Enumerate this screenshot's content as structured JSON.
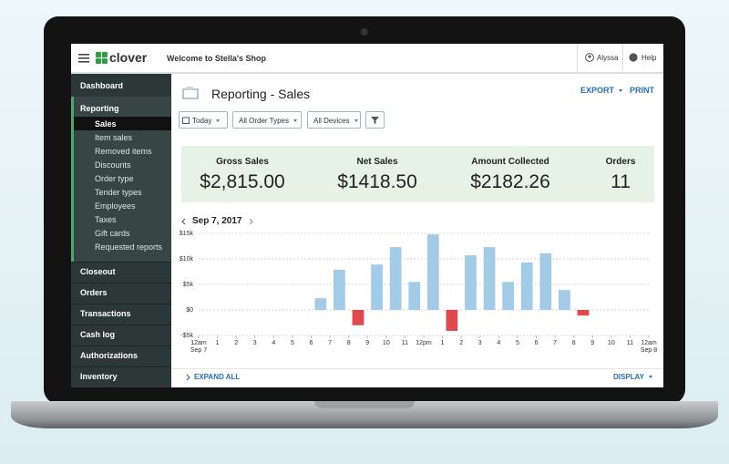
{
  "topbar": {
    "brand": "clover",
    "welcome": "Welcome to Stella's Shop",
    "user": "Alyssa",
    "help": "Help"
  },
  "sidebar": {
    "top": [
      "Dashboard",
      "Reporting"
    ],
    "sub": [
      "Sales",
      "Item sales",
      "Removed items",
      "Discounts",
      "Order type",
      "Tender types",
      "Employees",
      "Taxes",
      "Gift cards",
      "Requested reports"
    ],
    "active": 0,
    "bottom": [
      "Closeout",
      "Orders",
      "Transactions",
      "Cash log",
      "Authorizations",
      "Inventory"
    ]
  },
  "page": {
    "title": "Reporting - Sales",
    "actions": [
      "EXPORT",
      "PRINT"
    ],
    "filters": [
      "Today",
      "All Order Types",
      "All Devices"
    ]
  },
  "summary": [
    {
      "label": "Gross Sales",
      "value": "$2,815.00"
    },
    {
      "label": "Net Sales",
      "value": "$1418.50"
    },
    {
      "label": "Amount Collected",
      "value": "$2182.26"
    },
    {
      "label": "Orders",
      "value": "11"
    }
  ],
  "date": "Sep 7, 2017",
  "chart_data": {
    "type": "bar",
    "values": [
      0,
      0,
      0,
      0,
      0,
      0,
      2300,
      7900,
      -3000,
      8900,
      12300,
      5500,
      14800,
      -4100,
      10700,
      12300,
      5500,
      9300,
      11100,
      3900,
      -1100,
      0,
      0,
      0
    ],
    "color": "#a3cbe6",
    "negative_color": "#de4b4f",
    "x_labels": [
      "12am",
      "1",
      "2",
      "3",
      "4",
      "5",
      "6",
      "7",
      "8",
      "9",
      "10",
      "11",
      "12pm",
      "1",
      "2",
      "3",
      "4",
      "5",
      "6",
      "7",
      "8",
      "9",
      "10",
      "11",
      "12am"
    ],
    "x_date_labels": [
      "Sep 7",
      "Sep 8"
    ],
    "ylim": [
      -5000,
      15000
    ],
    "yticks": [
      {
        "value": -5000,
        "label": "-$5k"
      },
      {
        "value": 0,
        "label": "$0"
      },
      {
        "value": 5000,
        "label": "$5k"
      },
      {
        "value": 10000,
        "label": "$10k"
      },
      {
        "value": 15000,
        "label": "$15k"
      }
    ],
    "grid": true
  },
  "footer": {
    "expand": "EXPAND ALL",
    "display": "DISPLAY"
  }
}
